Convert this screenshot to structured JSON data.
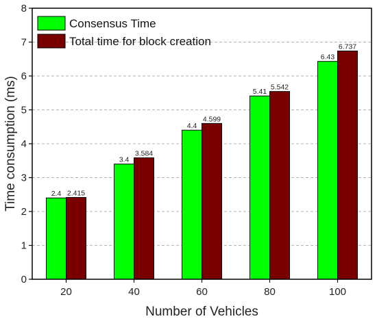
{
  "chart_data": {
    "type": "bar",
    "title": "",
    "xlabel": "Number of Vehicles",
    "ylabel": "Time consumption (ms)",
    "categories": [
      "20",
      "40",
      "60",
      "80",
      "100"
    ],
    "series": [
      {
        "name": "Consensus Time",
        "color": "#00ff00",
        "values": [
          2.4,
          3.4,
          4.4,
          5.41,
          6.43
        ],
        "labels": [
          "2.4",
          "3.4",
          "4.4",
          "5.41",
          "6.43"
        ]
      },
      {
        "name": "Total time for block creation",
        "color": "#7a0000",
        "values": [
          2.415,
          3.584,
          4.599,
          5.542,
          6.737
        ],
        "labels": [
          "2.415",
          "3.584",
          "4.599",
          "5.542",
          "6.737"
        ]
      }
    ],
    "ylim": [
      0,
      8
    ],
    "yticks": [
      "0",
      "1",
      "2",
      "3",
      "4",
      "5",
      "6",
      "7",
      "8"
    ],
    "grid": "horizontal-dashed",
    "legend": "top-left"
  }
}
